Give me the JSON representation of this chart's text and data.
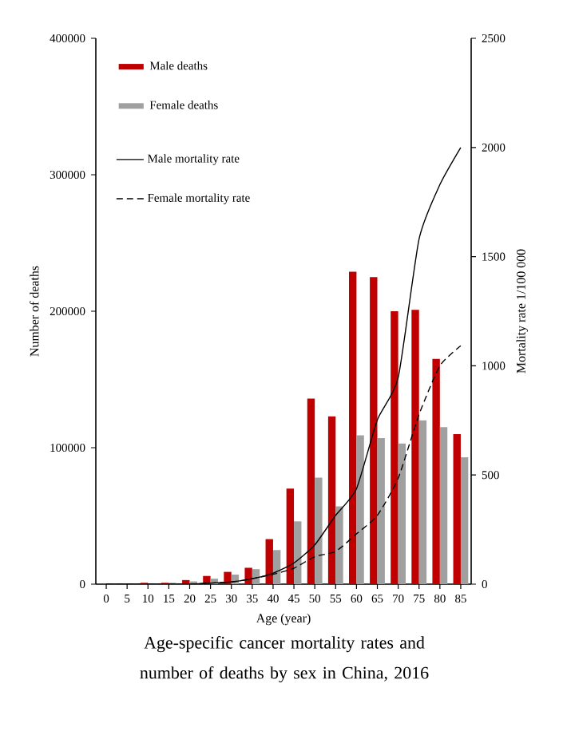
{
  "chart_data": {
    "type": "bar",
    "title": "Age-specific cancer mortality rates and number of deaths by sex in China, 2016",
    "xlabel": "Age (year)",
    "ylabel": "Number of deaths",
    "y2label": "Mortality rate 1/100 000",
    "categories": [
      "0",
      "5",
      "10",
      "15",
      "20",
      "25",
      "30",
      "35",
      "40",
      "45",
      "50",
      "55",
      "60",
      "65",
      "70",
      "75",
      "80",
      "85"
    ],
    "series": [
      {
        "name": "Male deaths",
        "color": "#c00000",
        "values": [
          0,
          0,
          1000,
          1000,
          3000,
          6000,
          9000,
          12000,
          33000,
          70000,
          136000,
          123000,
          229000,
          225000,
          200000,
          201000,
          165000,
          110000
        ]
      },
      {
        "name": "Female deaths",
        "color": "#a0a0a0",
        "values": [
          0,
          0,
          0,
          1000,
          2000,
          4000,
          7000,
          11000,
          25000,
          46000,
          78000,
          57000,
          109000,
          107000,
          103000,
          120000,
          115000,
          93000
        ]
      },
      {
        "name": "Male mortality rate",
        "type": "line",
        "axis": "y2",
        "color": "#000000",
        "line_style": "solid",
        "values": [
          0,
          0,
          0,
          0,
          0,
          5,
          10,
          25,
          50,
          97,
          180,
          315,
          437,
          752,
          946,
          1580,
          1830,
          2000
        ]
      },
      {
        "name": "Female mortality rate",
        "type": "line",
        "axis": "y2",
        "color": "#000000",
        "line_style": "dashed",
        "values": [
          0,
          0,
          0,
          0,
          0,
          5,
          10,
          25,
          45,
          73,
          126,
          150,
          230,
          315,
          485,
          777,
          1000,
          1092
        ]
      }
    ],
    "ylim": [
      0,
      400000
    ],
    "yticks": [
      0,
      100000,
      200000,
      300000,
      400000
    ],
    "y2lim": [
      0,
      2500
    ],
    "y2ticks": [
      0,
      500,
      1000,
      1500,
      2000,
      2500
    ],
    "legend": "top left",
    "grid": false,
    "marker": "none"
  }
}
